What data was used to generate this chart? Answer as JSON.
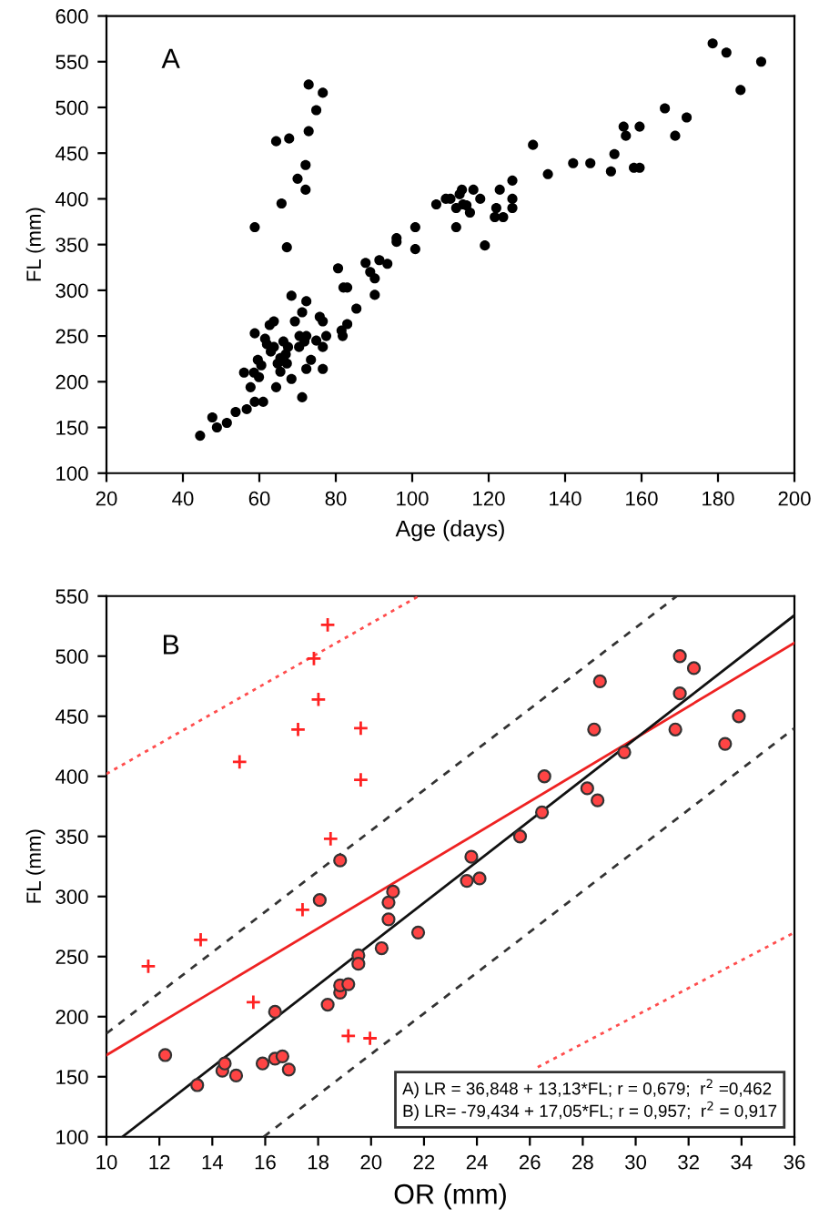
{
  "chart_data": [
    {
      "type": "scatter",
      "xlabel": "Age (days)",
      "ylabel": "FL (mm)",
      "xlim": [
        20,
        200
      ],
      "xticks": [
        20,
        40,
        60,
        80,
        100,
        120,
        140,
        160,
        180,
        200
      ],
      "ylim": [
        100,
        600
      ],
      "yticks": [
        100,
        150,
        200,
        250,
        300,
        350,
        400,
        450,
        500,
        550,
        600
      ],
      "grid": false,
      "annotations": [
        "A"
      ],
      "series": [
        {
          "marker": "circle",
          "color": "#000000",
          "x": [
            44.5,
            47.7,
            48.9,
            51.5,
            53.8,
            56,
            56.7,
            57.7,
            58.6,
            58.8,
            58.8,
            58.8,
            59.6,
            59.9,
            60.5,
            61,
            61.5,
            62,
            62.7,
            63,
            63.8,
            63.8,
            64.4,
            64.4,
            64.8,
            65.5,
            65.5,
            65.8,
            66.3,
            66.9,
            67.2,
            67.2,
            67.5,
            67.8,
            68.4,
            68.4,
            69.3,
            70,
            70.4,
            70.5,
            71.2,
            71.2,
            71.8,
            72.1,
            72.1,
            72.3,
            72.3,
            72.3,
            72.9,
            72.9,
            73.5,
            74.9,
            74.9,
            75.8,
            76.6,
            76.6,
            76.6,
            76.6,
            77.5,
            80.6,
            81.5,
            81.8,
            82,
            83,
            83,
            85.4,
            87.8,
            89,
            90.2,
            90.2,
            91.4,
            93.5,
            95.9,
            95.9,
            100.8,
            100.8,
            106.3,
            108.8,
            110,
            111.5,
            111.5,
            112.4,
            113,
            113.3,
            114.2,
            115.1,
            116,
            117.8,
            119,
            121.6,
            122,
            122.9,
            123.8,
            126.2,
            126.2,
            126.2,
            131.6,
            135.5,
            142.1,
            146.6,
            152,
            152.9,
            155.3,
            155.9,
            158,
            159.5,
            159.5,
            166.1,
            168.8,
            171.8,
            178.6,
            182.2,
            185.9,
            191.3
          ],
          "values": [
            141,
            161,
            150,
            155,
            167,
            210,
            170,
            194,
            210,
            253,
            369,
            178,
            224,
            205,
            218,
            178,
            247,
            241,
            262,
            233,
            266,
            238,
            194,
            463,
            220,
            211,
            226,
            395,
            244,
            230,
            347,
            220,
            238,
            466,
            294,
            203,
            266,
            422,
            238,
            250,
            183,
            276,
            244,
            437,
            410,
            288,
            214,
            250,
            474,
            525,
            224,
            497,
            245,
            271,
            266,
            238,
            214,
            516,
            250,
            324,
            256,
            250,
            303,
            303,
            263,
            280,
            330,
            320,
            313,
            295,
            333,
            329,
            357,
            353,
            369,
            345,
            394,
            400,
            400,
            390,
            369,
            405,
            410,
            394,
            393,
            385,
            410,
            400,
            349,
            380,
            390,
            410,
            380,
            400,
            390,
            420,
            459,
            427,
            439,
            439,
            430,
            449,
            479,
            469,
            434,
            434,
            479,
            499,
            469,
            489,
            570,
            560,
            519,
            550
          ]
        }
      ]
    },
    {
      "type": "scatter",
      "xlabel": "OR (mm)",
      "ylabel": "FL (mm)",
      "xlim": [
        10,
        36
      ],
      "xticks": [
        10,
        12,
        14,
        16,
        18,
        20,
        22,
        24,
        26,
        28,
        30,
        32,
        34,
        36
      ],
      "ylim": [
        100,
        550
      ],
      "yticks": [
        100,
        150,
        200,
        250,
        300,
        350,
        400,
        450,
        500,
        550
      ],
      "grid": false,
      "annotations": [
        "B",
        "A) LR = 36,848 + 13,13*FL; r = 0,679;  r$^{2}$ =0,462",
        "B) LR= -79,434 + 17,05*FL; r = 0,957;  r$^{2}$ = 0,917"
      ],
      "series": [
        {
          "type": "line",
          "line_style": "dotted",
          "color": "#ff4d4d",
          "x": [
            10,
            21.8
          ],
          "values": [
            402,
            550
          ]
        },
        {
          "type": "line",
          "line_style": "dotted",
          "color": "#ff4d4d",
          "x": [
            26.3,
            36
          ],
          "values": [
            158,
            270
          ]
        },
        {
          "type": "line",
          "line_style": "dashed",
          "color": "#333333",
          "x": [
            10,
            31.56
          ],
          "values": [
            186,
            550
          ]
        },
        {
          "type": "line",
          "line_style": "dashed",
          "color": "#333333",
          "x": [
            15.94,
            36
          ],
          "values": [
            100,
            440
          ]
        },
        {
          "type": "line",
          "line_style": "solid",
          "color": "#ee2222",
          "x": [
            10,
            36
          ],
          "values": [
            168,
            511
          ]
        },
        {
          "type": "line",
          "line_style": "solid",
          "color": "#111111",
          "x": [
            10.6,
            36
          ],
          "values": [
            100,
            534
          ]
        },
        {
          "marker": "cross",
          "color": "#ff2222",
          "x": [
            11.58,
            13.56,
            15.55,
            15.03,
            17.24,
            17.41,
            17.84,
            18.01,
            18.36,
            18.47,
            19.14,
            19.61,
            19.61,
            19.96
          ],
          "values": [
            242,
            264,
            212,
            412,
            439,
            289,
            498,
            464,
            526,
            348,
            184,
            440,
            397,
            182
          ]
        },
        {
          "marker": "circle",
          "color": "#ff4444",
          "x": [
            12.22,
            13.43,
            14.38,
            14.47,
            14.9,
            15.9,
            16.37,
            16.37,
            16.65,
            16.89,
            18.06,
            18.36,
            18.83,
            18.83,
            18.83,
            19.14,
            19.52,
            19.52,
            20.4,
            20.66,
            20.66,
            20.83,
            21.78,
            23.62,
            23.79,
            24.1,
            25.63,
            26.46,
            26.55,
            28.17,
            28.43,
            28.56,
            28.65,
            29.57,
            31.5,
            31.67,
            31.67,
            32.2,
            33.38,
            33.9
          ],
          "values": [
            168,
            143,
            155,
            161,
            151,
            161,
            204,
            165,
            167,
            156,
            297,
            210,
            330,
            220,
            226,
            227,
            251,
            244,
            257,
            295,
            281,
            304,
            270,
            313,
            333,
            315,
            350,
            370,
            400,
            390,
            439,
            380,
            479,
            420,
            439,
            469,
            500,
            490,
            427,
            450
          ]
        }
      ]
    }
  ]
}
